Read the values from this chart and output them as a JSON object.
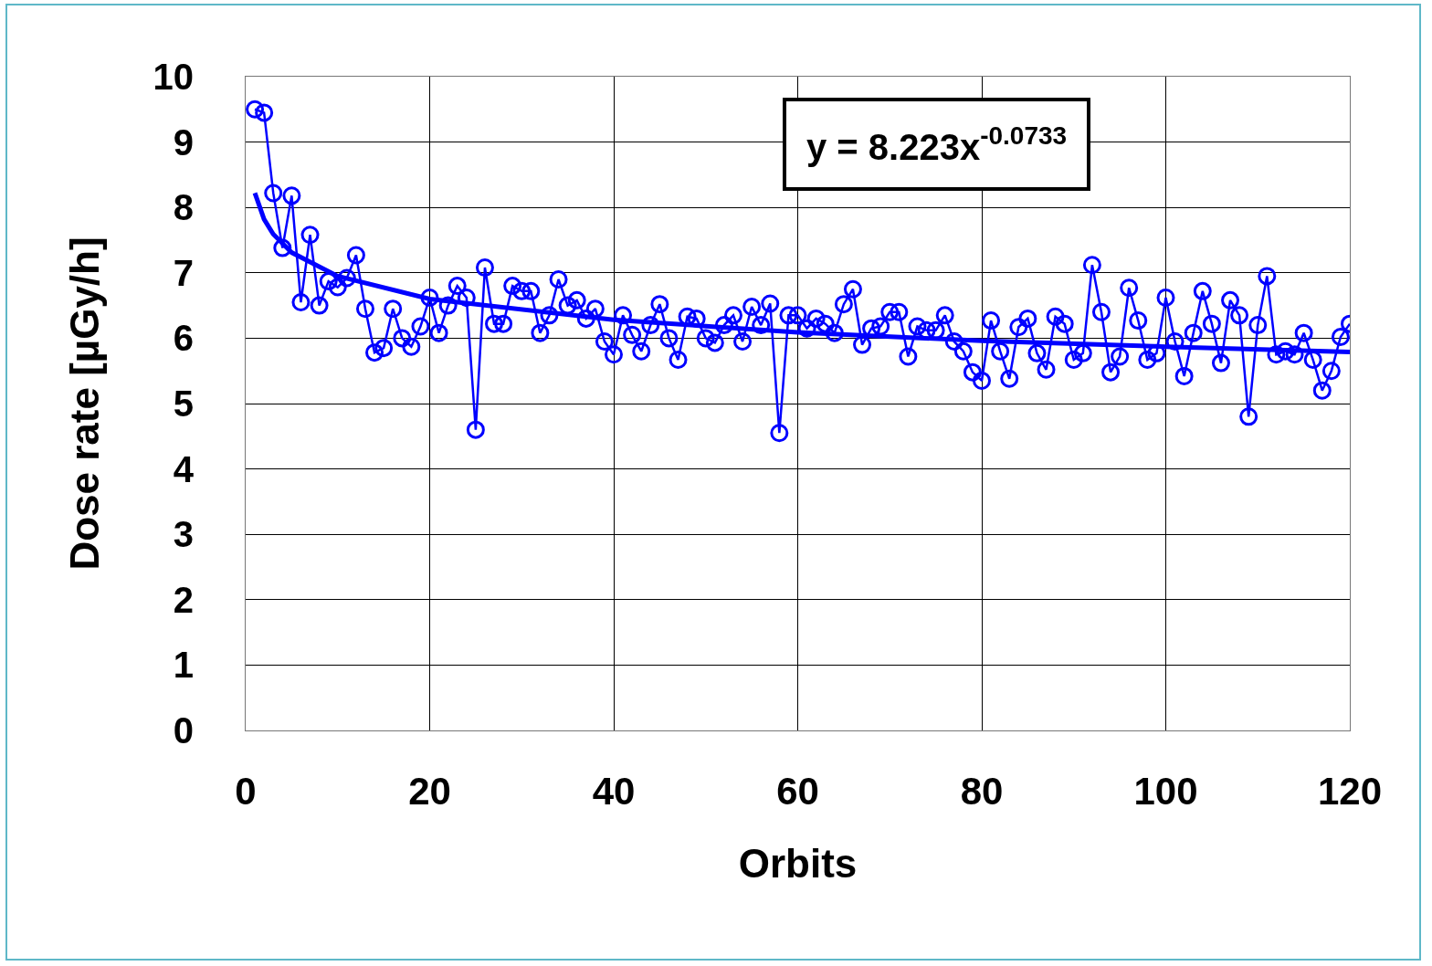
{
  "chart_data": {
    "type": "line",
    "xlabel": "Orbits",
    "ylabel": "Dose rate [µGy/h]",
    "annotations": [
      "y = 8.223x$^{-0.0733}$"
    ],
    "x": [
      1,
      2,
      3,
      4,
      5,
      6,
      7,
      8,
      9,
      10,
      11,
      12,
      13,
      14,
      15,
      16,
      17,
      18,
      19,
      20,
      21,
      22,
      23,
      24,
      25,
      26,
      27,
      28,
      29,
      30,
      31,
      32,
      33,
      34,
      35,
      36,
      37,
      38,
      39,
      40,
      41,
      42,
      43,
      44,
      45,
      46,
      47,
      48,
      49,
      50,
      51,
      52,
      53,
      54,
      55,
      56,
      57,
      58,
      59,
      60,
      61,
      62,
      63,
      64,
      65,
      66,
      67,
      68,
      69,
      70,
      71,
      72,
      73,
      74,
      75,
      76,
      77,
      78,
      79,
      80,
      81,
      82,
      83,
      84,
      85,
      86,
      87,
      88,
      89,
      90,
      91,
      92,
      93,
      94,
      95,
      96,
      97,
      98,
      99,
      100,
      101,
      102,
      103,
      104,
      105,
      106,
      107,
      108,
      109,
      110,
      111,
      112,
      113,
      114,
      115,
      116,
      117,
      118,
      119,
      120
    ],
    "series": [
      {
        "color": "#0000ff",
        "marker": "circle",
        "line_style": "solid",
        "values": [
          9.5,
          9.45,
          8.22,
          7.38,
          8.18,
          6.55,
          7.58,
          6.5,
          6.87,
          6.78,
          6.92,
          7.27,
          6.45,
          5.78,
          5.85,
          6.45,
          6.0,
          5.87,
          6.18,
          6.62,
          6.08,
          6.5,
          6.8,
          6.62,
          4.6,
          7.08,
          6.22,
          6.22,
          6.8,
          6.72,
          6.72,
          6.08,
          6.35,
          6.9,
          6.5,
          6.58,
          6.3,
          6.45,
          5.95,
          5.75,
          6.35,
          6.05,
          5.8,
          6.2,
          6.52,
          6.0,
          5.67,
          6.33,
          6.3,
          6.0,
          5.93,
          6.2,
          6.35,
          5.95,
          6.48,
          6.2,
          6.53,
          4.55,
          6.35,
          6.35,
          6.15,
          6.3,
          6.22,
          6.08,
          6.52,
          6.75,
          5.9,
          6.15,
          6.18,
          6.4,
          6.4,
          5.72,
          6.18,
          6.12,
          6.12,
          6.35,
          5.95,
          5.8,
          5.48,
          5.35,
          6.27,
          5.8,
          5.38,
          6.17,
          6.3,
          5.77,
          5.52,
          6.33,
          6.22,
          5.67,
          5.77,
          7.12,
          6.4,
          5.48,
          5.72,
          6.77,
          6.27,
          5.67,
          5.77,
          6.62,
          5.95,
          5.42,
          6.08,
          6.72,
          6.22,
          5.62,
          6.58,
          6.35,
          4.8,
          6.2,
          6.95,
          5.75,
          5.8,
          5.75,
          6.08,
          5.67,
          5.2,
          5.5,
          6.02,
          6.22
        ]
      },
      {
        "type": "line",
        "color": "#0000ff",
        "marker": "none",
        "line_style": "solid",
        "x": [
          1,
          2,
          3,
          5,
          10,
          20,
          40,
          60,
          80,
          100,
          120
        ],
        "values": [
          8.22,
          7.82,
          7.59,
          7.31,
          6.95,
          6.6,
          6.28,
          6.09,
          5.96,
          5.87,
          5.79
        ]
      }
    ],
    "xlim": [
      0,
      120
    ],
    "xticks": [
      0,
      20,
      40,
      60,
      80,
      100,
      120
    ],
    "ylim": [
      0,
      10
    ],
    "yticks": [
      0,
      1,
      2,
      3,
      4,
      5,
      6,
      7,
      8,
      9,
      10
    ],
    "grid": true
  }
}
